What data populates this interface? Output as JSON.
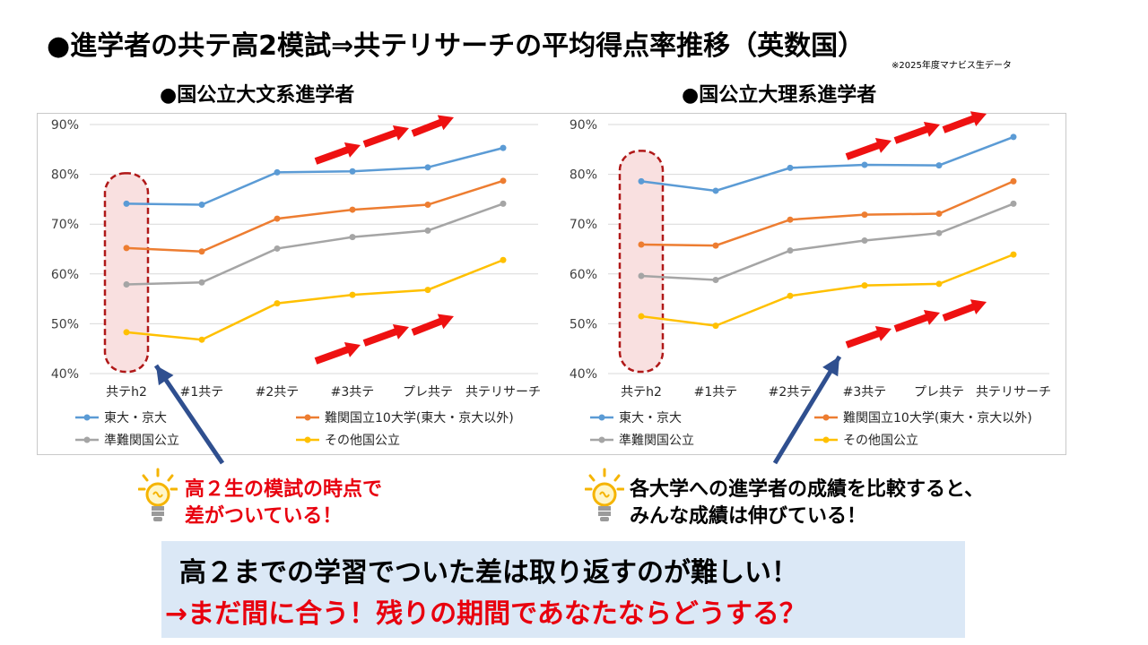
{
  "title": "●進学者の共テ高2模試⇒共テリサーチの平均得点率推移（英数国）",
  "note": "※2025年度マナビス生データ",
  "callouts": {
    "left": [
      "高２生の模試の時点で",
      "差がついている！"
    ],
    "right": [
      "各大学への進学者の成績を比較すると、",
      "みんな成績は伸びている！"
    ]
  },
  "bottom": {
    "line1": "高２までの学習でついた差は取り返すのが難しい！",
    "line2": "→まだ間に合う！残りの期間であなたならどうする？",
    "background": "#dbe8f6"
  },
  "colors": {
    "arrow_red": "#ee1111",
    "arrow_navy": "#2f4f8f",
    "highlight_fill": "#f9e0e0",
    "highlight_border": "#b01818",
    "grid": "#d9d9d9",
    "axis_text": "#404040"
  },
  "chart_data": [
    {
      "type": "line",
      "title": "●国公立大文系進学者",
      "categories": [
        "共テh2",
        "#1共テ",
        "#2共テ",
        "#3共テ",
        "プレ共テ",
        "共テリサーチ"
      ],
      "ylim": [
        40,
        90
      ],
      "yticks": [
        "40%",
        "50%",
        "60%",
        "70%",
        "80%",
        "90%"
      ],
      "grid": true,
      "legend_position": "bottom",
      "series": [
        {
          "name": "東大・京大",
          "color": "#5b9bd5",
          "values": [
            74.1,
            73.9,
            80.4,
            80.6,
            81.4,
            85.3
          ]
        },
        {
          "name": "難関国立10大学(東大・京大以外)",
          "color": "#ed7d31",
          "values": [
            65.2,
            64.5,
            71.1,
            72.9,
            73.9,
            78.7
          ]
        },
        {
          "name": "準難関国公立",
          "color": "#a5a5a5",
          "values": [
            57.9,
            58.3,
            65.1,
            67.4,
            68.7,
            74.1
          ]
        },
        {
          "name": "その他国公立",
          "color": "#ffc000",
          "values": [
            48.3,
            46.8,
            54.1,
            55.8,
            56.8,
            62.8
          ]
        }
      ]
    },
    {
      "type": "line",
      "title": "●国公立大理系進学者",
      "categories": [
        "共テh2",
        "#1共テ",
        "#2共テ",
        "#3共テ",
        "プレ共テ",
        "共テリサーチ"
      ],
      "ylim": [
        40,
        90
      ],
      "yticks": [
        "40%",
        "50%",
        "60%",
        "70%",
        "80%",
        "90%"
      ],
      "grid": true,
      "legend_position": "bottom",
      "series": [
        {
          "name": "東大・京大",
          "color": "#5b9bd5",
          "values": [
            78.6,
            76.7,
            81.3,
            81.9,
            81.8,
            87.5
          ]
        },
        {
          "name": "難関国立10大学(東大・京大以外)",
          "color": "#ed7d31",
          "values": [
            65.9,
            65.7,
            70.9,
            71.9,
            72.1,
            78.6
          ]
        },
        {
          "name": "準難関国公立",
          "color": "#a5a5a5",
          "values": [
            59.6,
            58.8,
            64.7,
            66.7,
            68.2,
            74.1
          ]
        },
        {
          "name": "その他国公立",
          "color": "#ffc000",
          "values": [
            51.5,
            49.6,
            55.6,
            57.7,
            58.0,
            63.9
          ]
        }
      ]
    }
  ]
}
